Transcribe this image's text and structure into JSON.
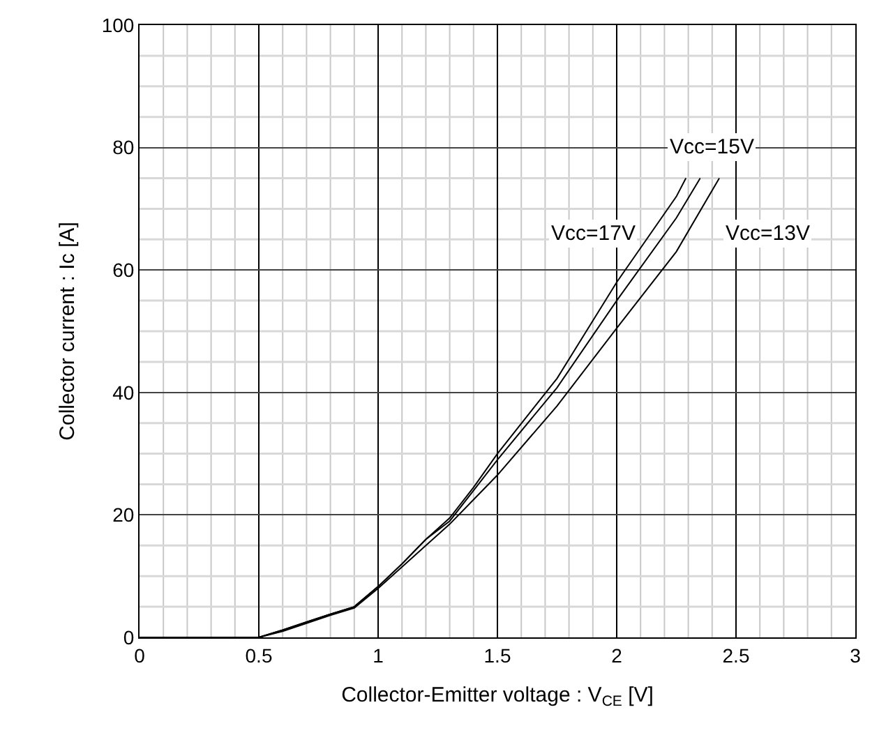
{
  "chart_data": {
    "type": "line",
    "xlabel": "Collector-Emitter voltage : V$_{CE}$ [V]",
    "ylabel": "Collector current : Ic [A]",
    "xlim": [
      0,
      3
    ],
    "xticks": [
      0,
      0.5,
      1,
      1.5,
      2,
      2.5,
      3
    ],
    "ylim": [
      0,
      100
    ],
    "yticks": [
      0,
      20,
      40,
      60,
      80,
      100
    ],
    "grid": true,
    "legend": false,
    "marker": "none",
    "line_style": "solid",
    "series": [
      {
        "name": "Vcc=17V",
        "color": "#000000",
        "x": [
          0,
          0.5,
          0.6,
          0.7,
          0.8,
          0.9,
          1.0,
          1.1,
          1.2,
          1.3,
          1.4,
          1.5,
          1.75,
          2.0,
          2.25,
          2.29
        ],
        "values": [
          0,
          0,
          1.2,
          2.5,
          3.8,
          5,
          8.3,
          12,
          16,
          19.5,
          24.5,
          30,
          42.3,
          58,
          72,
          75
        ]
      },
      {
        "name": "Vcc=15V",
        "color": "#000000",
        "x": [
          0,
          0.5,
          0.6,
          0.7,
          0.8,
          0.9,
          1.0,
          1.1,
          1.2,
          1.3,
          1.4,
          1.5,
          1.75,
          2.0,
          2.25,
          2.35
        ],
        "values": [
          0,
          0,
          1.2,
          2.5,
          3.8,
          5,
          8.3,
          12,
          16,
          19,
          24,
          29,
          40.8,
          55,
          68.5,
          75
        ]
      },
      {
        "name": "Vcc=13V",
        "color": "#000000",
        "x": [
          0,
          0.5,
          0.6,
          0.7,
          0.8,
          0.9,
          1.0,
          1.1,
          1.2,
          1.3,
          1.4,
          1.5,
          1.75,
          2.0,
          2.25,
          2.43
        ],
        "values": [
          0,
          0,
          1,
          2.3,
          3.6,
          4.8,
          8,
          11.5,
          15,
          18.5,
          22.5,
          26.5,
          37.8,
          50.5,
          63,
          75
        ]
      }
    ]
  }
}
